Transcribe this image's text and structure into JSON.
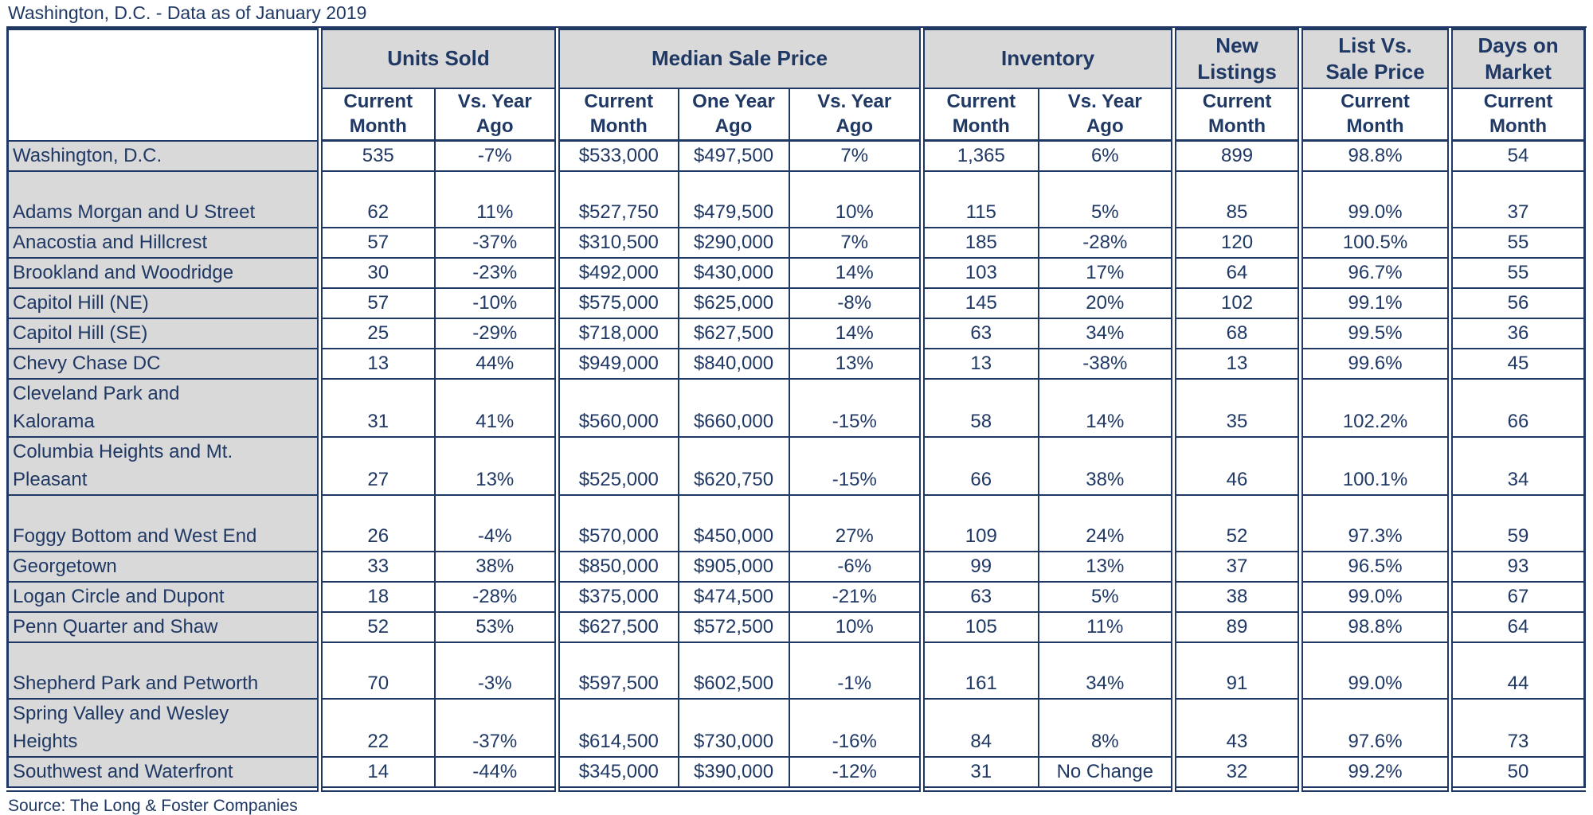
{
  "title": "Washington, D.C. - Data as of January 2019",
  "source": "Source: The Long & Foster Companies",
  "colors": {
    "text": "#1f3864",
    "border": "#1f3864",
    "header_bg": "#d9d9d9",
    "label_bg": "#d9d9d9",
    "page_bg": "#ffffff"
  },
  "chart_data": {
    "type": "table",
    "title": "Washington, D.C. - Data as of January 2019",
    "note": "Real estate market statistics table; same data as table.rows below"
  },
  "table": {
    "groups": [
      {
        "label": "Units Sold",
        "span": 2
      },
      {
        "label": "Median Sale Price",
        "span": 3
      },
      {
        "label": "Inventory",
        "span": 2
      },
      {
        "label": "New\nListings",
        "span": 1
      },
      {
        "label": "List Vs.\nSale Price",
        "span": 1
      },
      {
        "label": "Days on\nMarket",
        "span": 1
      }
    ],
    "subheaders": [
      "Current\nMonth",
      "Vs. Year\nAgo",
      "Current\nMonth",
      "One Year\nAgo",
      "Vs. Year\nAgo",
      "Current\nMonth",
      "Vs. Year\nAgo",
      "Current\nMonth",
      "Current\nMonth",
      "Current\nMonth"
    ],
    "rows": [
      {
        "label": "Washington, D.C.",
        "tall": false,
        "values": [
          "535",
          "-7%",
          "$533,000",
          "$497,500",
          "7%",
          "1,365",
          "6%",
          "899",
          "98.8%",
          "54"
        ]
      },
      {
        "label": "Adams Morgan and U Street",
        "tall": true,
        "values": [
          "62",
          "11%",
          "$527,750",
          "$479,500",
          "10%",
          "115",
          "5%",
          "85",
          "99.0%",
          "37"
        ]
      },
      {
        "label": "Anacostia and Hillcrest",
        "tall": false,
        "values": [
          "57",
          "-37%",
          "$310,500",
          "$290,000",
          "7%",
          "185",
          "-28%",
          "120",
          "100.5%",
          "55"
        ]
      },
      {
        "label": "Brookland and Woodridge",
        "tall": false,
        "values": [
          "30",
          "-23%",
          "$492,000",
          "$430,000",
          "14%",
          "103",
          "17%",
          "64",
          "96.7%",
          "55"
        ]
      },
      {
        "label": "Capitol Hill (NE)",
        "tall": false,
        "values": [
          "57",
          "-10%",
          "$575,000",
          "$625,000",
          "-8%",
          "145",
          "20%",
          "102",
          "99.1%",
          "56"
        ]
      },
      {
        "label": "Capitol Hill (SE)",
        "tall": false,
        "values": [
          "25",
          "-29%",
          "$718,000",
          "$627,500",
          "14%",
          "63",
          "34%",
          "68",
          "99.5%",
          "36"
        ]
      },
      {
        "label": "Chevy Chase DC",
        "tall": false,
        "values": [
          "13",
          "44%",
          "$949,000",
          "$840,000",
          "13%",
          "13",
          "-38%",
          "13",
          "99.6%",
          "45"
        ]
      },
      {
        "label": "Cleveland Park and\nKalorama",
        "tall": true,
        "values": [
          "31",
          "41%",
          "$560,000",
          "$660,000",
          "-15%",
          "58",
          "14%",
          "35",
          "102.2%",
          "66"
        ]
      },
      {
        "label": "Columbia Heights and Mt.\nPleasant",
        "tall": true,
        "values": [
          "27",
          "13%",
          "$525,000",
          "$620,750",
          "-15%",
          "66",
          "38%",
          "46",
          "100.1%",
          "34"
        ]
      },
      {
        "label": "Foggy Bottom and West End",
        "tall": true,
        "values": [
          "26",
          "-4%",
          "$570,000",
          "$450,000",
          "27%",
          "109",
          "24%",
          "52",
          "97.3%",
          "59"
        ]
      },
      {
        "label": "Georgetown",
        "tall": false,
        "values": [
          "33",
          "38%",
          "$850,000",
          "$905,000",
          "-6%",
          "99",
          "13%",
          "37",
          "96.5%",
          "93"
        ]
      },
      {
        "label": "Logan Circle and Dupont",
        "tall": false,
        "values": [
          "18",
          "-28%",
          "$375,000",
          "$474,500",
          "-21%",
          "63",
          "5%",
          "38",
          "99.0%",
          "67"
        ]
      },
      {
        "label": "Penn Quarter and Shaw",
        "tall": false,
        "values": [
          "52",
          "53%",
          "$627,500",
          "$572,500",
          "10%",
          "105",
          "11%",
          "89",
          "98.8%",
          "64"
        ]
      },
      {
        "label": "Shepherd Park and Petworth",
        "tall": true,
        "values": [
          "70",
          "-3%",
          "$597,500",
          "$602,500",
          "-1%",
          "161",
          "34%",
          "91",
          "99.0%",
          "44"
        ]
      },
      {
        "label": "Spring Valley and Wesley\nHeights",
        "tall": true,
        "values": [
          "22",
          "-37%",
          "$614,500",
          "$730,000",
          "-16%",
          "84",
          "8%",
          "43",
          "97.6%",
          "73"
        ]
      },
      {
        "label": "Southwest and Waterfront",
        "tall": false,
        "values": [
          "14",
          "-44%",
          "$345,000",
          "$390,000",
          "-12%",
          "31",
          "No Change",
          "32",
          "99.2%",
          "50"
        ]
      }
    ]
  }
}
